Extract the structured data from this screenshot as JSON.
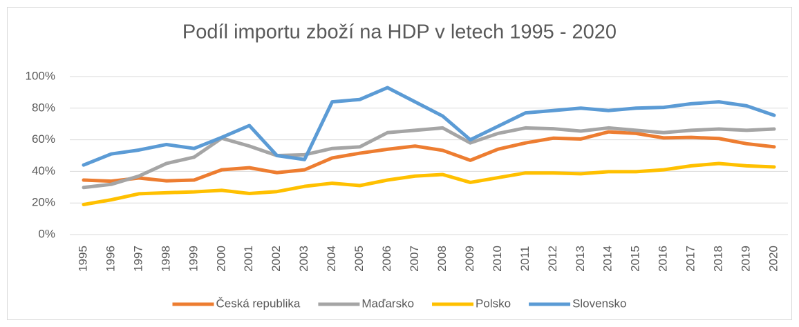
{
  "chart_data": {
    "type": "line",
    "title": "Podíl importu zboží na HDP v letech 1995 - 2020",
    "categories": [
      "1995",
      "1996",
      "1997",
      "1998",
      "1999",
      "2000",
      "2001",
      "2002",
      "2003",
      "2004",
      "2005",
      "2006",
      "2007",
      "2008",
      "2009",
      "2010",
      "2011",
      "2012",
      "2013",
      "2014",
      "2015",
      "2016",
      "2017",
      "2018",
      "2019",
      "2020"
    ],
    "series": [
      {
        "name": "Česká republika",
        "color": "#ed7d31",
        "values": [
          34.5,
          33.8,
          35.8,
          34,
          34.5,
          41,
          42.3,
          39.2,
          41,
          48.5,
          51.5,
          54,
          56,
          53.3,
          47,
          54,
          58,
          61,
          60.5,
          65,
          64,
          61.2,
          61.5,
          60.8,
          57.5,
          55.5
        ]
      },
      {
        "name": "Maďarsko",
        "color": "#a5a5a5",
        "values": [
          29.8,
          31.8,
          37,
          45,
          49,
          61,
          56,
          50,
          50.5,
          54.5,
          55.5,
          64.5,
          66,
          67.5,
          58,
          64,
          67.5,
          67,
          65.5,
          67.5,
          66,
          64.5,
          66,
          66.8,
          66,
          66.8
        ]
      },
      {
        "name": "Polsko",
        "color": "#ffc000",
        "values": [
          19,
          22,
          25.8,
          26.5,
          27,
          28,
          26,
          27.2,
          30.5,
          32.5,
          31,
          34.5,
          37,
          38,
          33,
          36,
          39,
          39,
          38.5,
          39.8,
          39.8,
          41,
          43.5,
          45,
          43.5,
          42.8
        ]
      },
      {
        "name": "Slovensko",
        "color": "#5b9bd5",
        "values": [
          44,
          51,
          53.5,
          57,
          54.5,
          61.5,
          69,
          50,
          47.5,
          84,
          85.5,
          93,
          84,
          75,
          60,
          68.5,
          77,
          78.5,
          80,
          78.5,
          80,
          80.5,
          82.8,
          84,
          81.5,
          75.5
        ]
      }
    ],
    "ylim": [
      0,
      100
    ],
    "yticks": [
      {
        "value": 0,
        "label": "0%"
      },
      {
        "value": 20,
        "label": "20%"
      },
      {
        "value": 40,
        "label": "40%"
      },
      {
        "value": 60,
        "label": "60%"
      },
      {
        "value": 80,
        "label": "80%"
      },
      {
        "value": 100,
        "label": "100%"
      }
    ],
    "grid": true,
    "legend": "bottom"
  }
}
